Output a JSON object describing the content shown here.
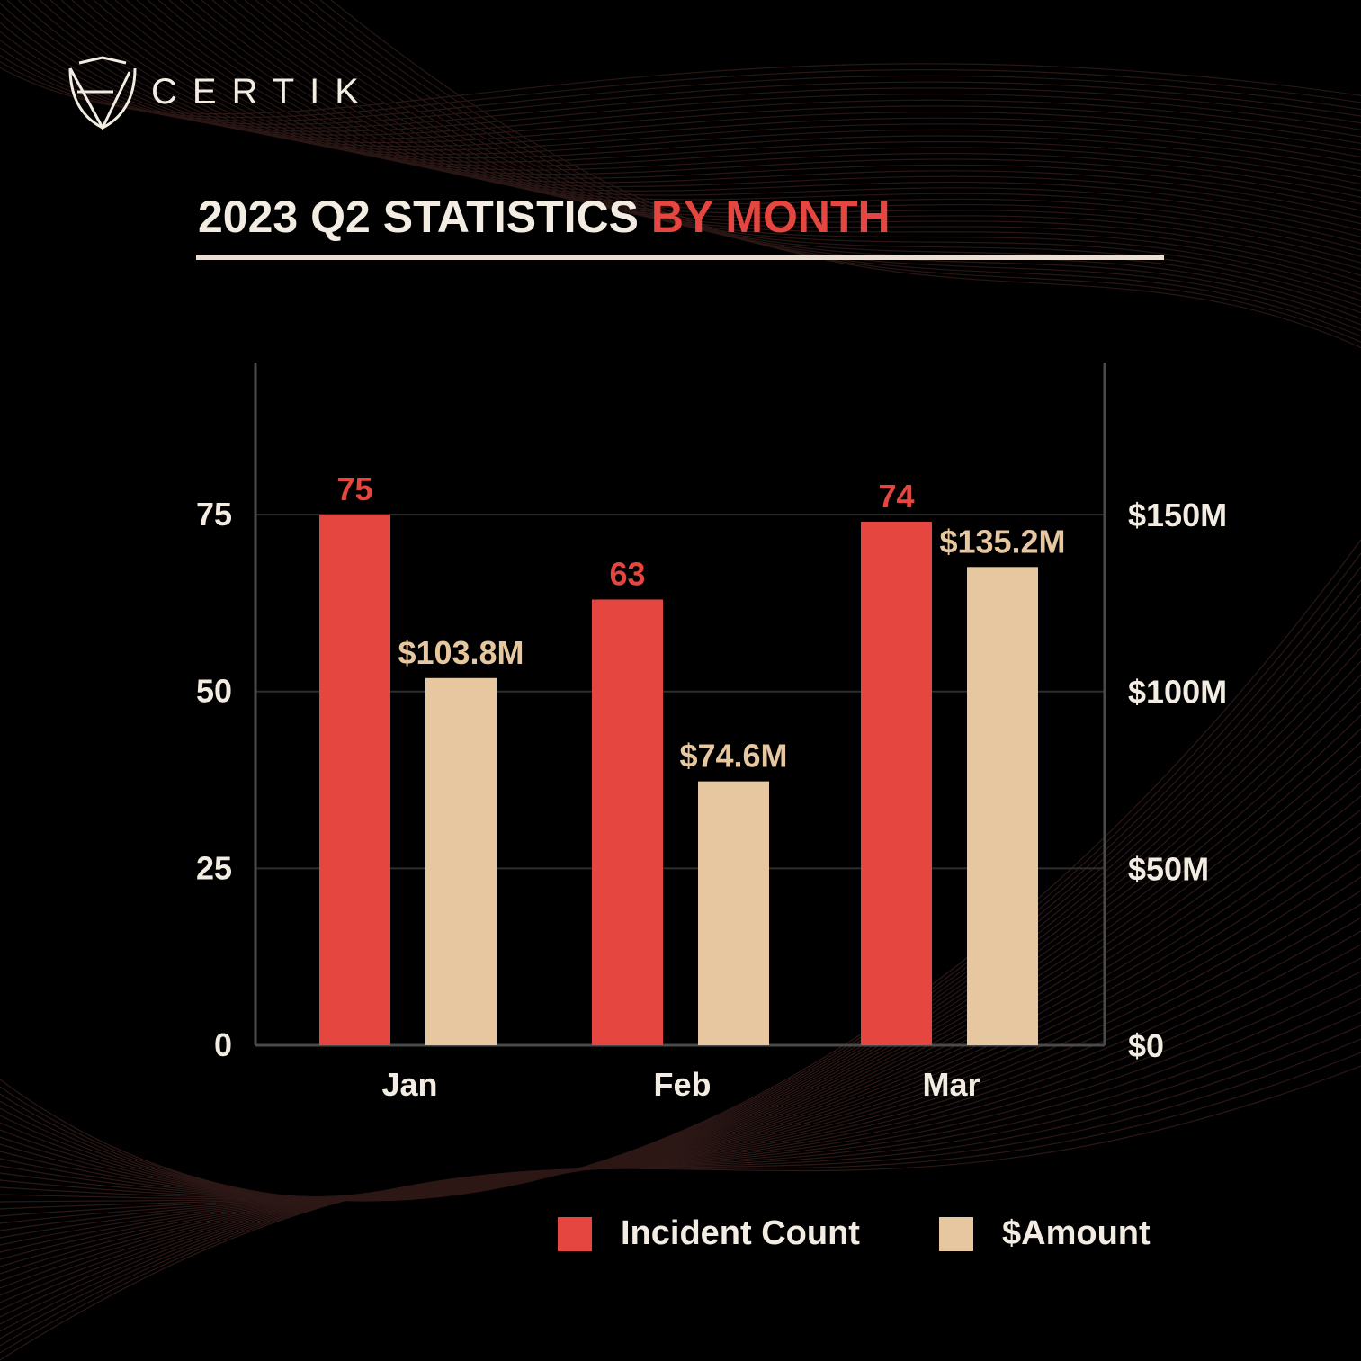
{
  "brand": {
    "logo_text": "CERTIK"
  },
  "title": {
    "main": "2023 Q2 STATISTICS",
    "highlight": "BY MONTH"
  },
  "colors": {
    "incident": "#e5463f",
    "amount": "#e6c7a0",
    "background": "#000000",
    "text": "#f3ece2"
  },
  "chart_data": {
    "type": "bar",
    "categories": [
      "Jan",
      "Feb",
      "Mar"
    ],
    "series": [
      {
        "name": "Incident Count",
        "axis": "left",
        "values": [
          75,
          63,
          74
        ],
        "labels": [
          "75",
          "63",
          "74"
        ]
      },
      {
        "name": "$Amount",
        "axis": "right",
        "values": [
          103.8,
          74.6,
          135.2
        ],
        "labels": [
          "$103.8M",
          "$74.6M",
          "$135.2M"
        ]
      }
    ],
    "left_axis": {
      "ticks": [
        0,
        25,
        50,
        75
      ],
      "tick_labels": [
        "0",
        "25",
        "50",
        "75"
      ],
      "ylim": [
        0,
        96.5
      ]
    },
    "right_axis": {
      "ticks": [
        0,
        50,
        100,
        150
      ],
      "tick_labels": [
        "$0",
        "$50M",
        "$100M",
        "$150M"
      ],
      "ylim": [
        0,
        193
      ],
      "unit": "$M"
    },
    "grid": true,
    "legend": "bottom-right"
  }
}
